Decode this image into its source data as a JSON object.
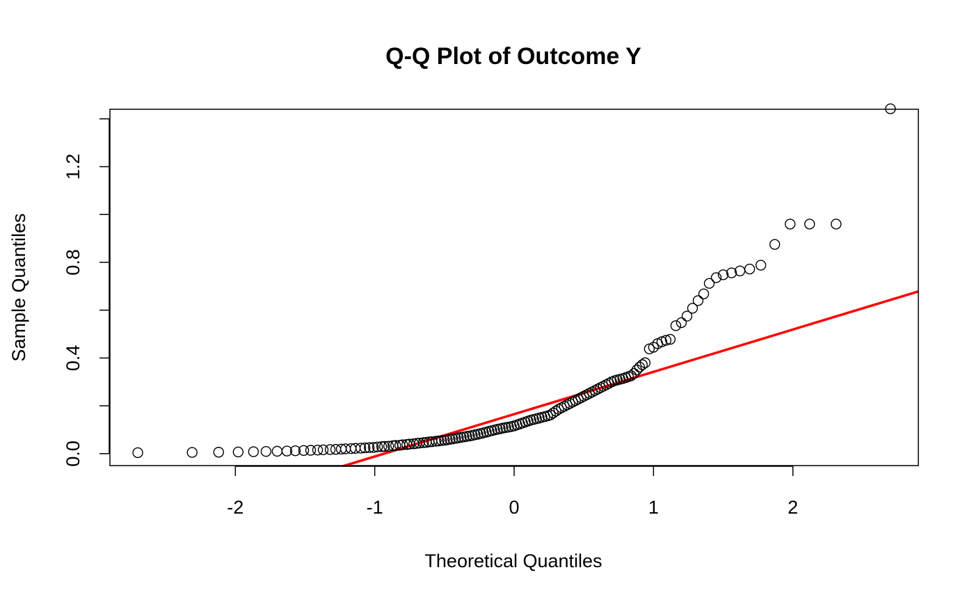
{
  "chart_data": {
    "type": "scatter",
    "title": "Q-Q Plot of Outcome Y",
    "xlabel": "Theoretical Quantiles",
    "ylabel": "Sample Quantiles",
    "xlim": [
      -2.9,
      2.9
    ],
    "ylim": [
      -0.05,
      1.44
    ],
    "x_ticks": [
      -2,
      -1,
      0,
      1,
      2
    ],
    "x_tick_labels": [
      "-2",
      "-1",
      "0",
      "1",
      "2"
    ],
    "y_ticks": [
      0.0,
      0.2,
      0.4,
      0.6,
      0.8,
      1.0,
      1.2,
      1.4
    ],
    "y_tick_labels": [
      "0.0",
      "",
      "0.4",
      "",
      "0.8",
      "",
      "1.2",
      ""
    ],
    "grid": false,
    "colors": {
      "points": "#000000",
      "reference_line": "#ff0000"
    },
    "reference_line": {
      "intercept": 0.165,
      "slope": 0.177
    },
    "points": [
      [
        -2.7,
        0.004
      ],
      [
        -2.31,
        0.005
      ],
      [
        -2.12,
        0.006
      ],
      [
        -1.98,
        0.007
      ],
      [
        -1.87,
        0.008
      ],
      [
        -1.78,
        0.009
      ],
      [
        -1.7,
        0.01
      ],
      [
        -1.63,
        0.011
      ],
      [
        -1.57,
        0.012
      ],
      [
        -1.51,
        0.013
      ],
      [
        -1.46,
        0.014
      ],
      [
        -1.41,
        0.015
      ],
      [
        -1.37,
        0.016
      ],
      [
        -1.32,
        0.017
      ],
      [
        -1.28,
        0.018
      ],
      [
        -1.24,
        0.019
      ],
      [
        -1.21,
        0.02
      ],
      [
        -1.17,
        0.021
      ],
      [
        -1.14,
        0.022
      ],
      [
        -1.1,
        0.023
      ],
      [
        -1.07,
        0.024
      ],
      [
        -1.04,
        0.025
      ],
      [
        -1.01,
        0.026
      ],
      [
        -0.98,
        0.028
      ],
      [
        -0.95,
        0.029
      ],
      [
        -0.93,
        0.03
      ],
      [
        -0.9,
        0.031
      ],
      [
        -0.87,
        0.033
      ],
      [
        -0.85,
        0.034
      ],
      [
        -0.82,
        0.035
      ],
      [
        -0.8,
        0.037
      ],
      [
        -0.77,
        0.038
      ],
      [
        -0.75,
        0.04
      ],
      [
        -0.72,
        0.041
      ],
      [
        -0.7,
        0.043
      ],
      [
        -0.68,
        0.044
      ],
      [
        -0.65,
        0.046
      ],
      [
        -0.63,
        0.047
      ],
      [
        -0.61,
        0.049
      ],
      [
        -0.59,
        0.05
      ],
      [
        -0.56,
        0.052
      ],
      [
        -0.54,
        0.053
      ],
      [
        -0.52,
        0.055
      ],
      [
        -0.5,
        0.056
      ],
      [
        -0.48,
        0.058
      ],
      [
        -0.46,
        0.06
      ],
      [
        -0.44,
        0.062
      ],
      [
        -0.42,
        0.064
      ],
      [
        -0.4,
        0.066
      ],
      [
        -0.38,
        0.068
      ],
      [
        -0.36,
        0.07
      ],
      [
        -0.34,
        0.072
      ],
      [
        -0.32,
        0.074
      ],
      [
        -0.3,
        0.076
      ],
      [
        -0.28,
        0.079
      ],
      [
        -0.26,
        0.081
      ],
      [
        -0.24,
        0.084
      ],
      [
        -0.22,
        0.087
      ],
      [
        -0.2,
        0.09
      ],
      [
        -0.18,
        0.093
      ],
      [
        -0.16,
        0.096
      ],
      [
        -0.14,
        0.099
      ],
      [
        -0.12,
        0.102
      ],
      [
        -0.1,
        0.104
      ],
      [
        -0.08,
        0.107
      ],
      [
        -0.06,
        0.109
      ],
      [
        -0.04,
        0.111
      ],
      [
        -0.02,
        0.113
      ],
      [
        0.0,
        0.116
      ],
      [
        0.02,
        0.12
      ],
      [
        0.04,
        0.124
      ],
      [
        0.06,
        0.128
      ],
      [
        0.08,
        0.132
      ],
      [
        0.1,
        0.136
      ],
      [
        0.12,
        0.14
      ],
      [
        0.14,
        0.143
      ],
      [
        0.16,
        0.146
      ],
      [
        0.18,
        0.149
      ],
      [
        0.2,
        0.152
      ],
      [
        0.22,
        0.155
      ],
      [
        0.24,
        0.158
      ],
      [
        0.26,
        0.162
      ],
      [
        0.28,
        0.17
      ],
      [
        0.3,
        0.178
      ],
      [
        0.32,
        0.186
      ],
      [
        0.34,
        0.192
      ],
      [
        0.36,
        0.198
      ],
      [
        0.38,
        0.204
      ],
      [
        0.4,
        0.21
      ],
      [
        0.42,
        0.216
      ],
      [
        0.44,
        0.222
      ],
      [
        0.46,
        0.228
      ],
      [
        0.48,
        0.234
      ],
      [
        0.5,
        0.24
      ],
      [
        0.52,
        0.246
      ],
      [
        0.54,
        0.252
      ],
      [
        0.56,
        0.258
      ],
      [
        0.58,
        0.264
      ],
      [
        0.6,
        0.27
      ],
      [
        0.62,
        0.276
      ],
      [
        0.64,
        0.282
      ],
      [
        0.66,
        0.288
      ],
      [
        0.68,
        0.294
      ],
      [
        0.7,
        0.3
      ],
      [
        0.72,
        0.305
      ],
      [
        0.74,
        0.308
      ],
      [
        0.76,
        0.311
      ],
      [
        0.78,
        0.314
      ],
      [
        0.8,
        0.318
      ],
      [
        0.82,
        0.322
      ],
      [
        0.84,
        0.326
      ],
      [
        0.86,
        0.335
      ],
      [
        0.88,
        0.35
      ],
      [
        0.9,
        0.362
      ],
      [
        0.92,
        0.372
      ],
      [
        0.94,
        0.38
      ],
      [
        0.97,
        0.438
      ],
      [
        1.0,
        0.445
      ],
      [
        1.03,
        0.46
      ],
      [
        1.06,
        0.468
      ],
      [
        1.09,
        0.474
      ],
      [
        1.12,
        0.478
      ],
      [
        1.16,
        0.535
      ],
      [
        1.2,
        0.548
      ],
      [
        1.24,
        0.575
      ],
      [
        1.28,
        0.608
      ],
      [
        1.32,
        0.64
      ],
      [
        1.36,
        0.668
      ],
      [
        1.4,
        0.712
      ],
      [
        1.45,
        0.736
      ],
      [
        1.5,
        0.748
      ],
      [
        1.56,
        0.756
      ],
      [
        1.62,
        0.764
      ],
      [
        1.69,
        0.772
      ],
      [
        1.77,
        0.788
      ],
      [
        1.87,
        0.875
      ],
      [
        1.98,
        0.96
      ],
      [
        2.12,
        0.96
      ],
      [
        2.31,
        0.96
      ],
      [
        2.7,
        1.442
      ]
    ]
  }
}
